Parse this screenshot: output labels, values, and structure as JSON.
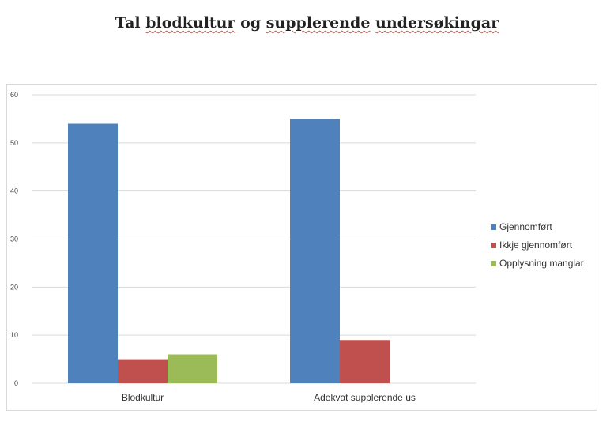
{
  "document": {
    "title_words": [
      "Tal",
      "blodkultur",
      "og",
      "supplerende",
      "undersøkingar"
    ]
  },
  "chart_data": {
    "type": "bar",
    "categories": [
      "Blodkultur",
      "Adekvat supplerende us"
    ],
    "series": [
      {
        "name": "Gjennomført",
        "color": "#4f81bd",
        "values": [
          54,
          55
        ]
      },
      {
        "name": "Ikkje gjennomført",
        "color": "#c0504d",
        "values": [
          5,
          9
        ]
      },
      {
        "name": "Opplysning manglar",
        "color": "#9bbb59",
        "values": [
          6,
          null
        ]
      }
    ],
    "y_ticks": [
      "0",
      "10",
      "20",
      "30",
      "40",
      "50",
      "60"
    ],
    "ylim": [
      0,
      60
    ],
    "grid": true,
    "legend_position": "right"
  }
}
